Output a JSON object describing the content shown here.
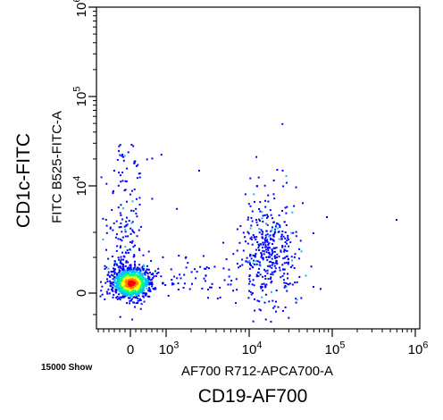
{
  "figure": {
    "outer_ylabel": "CD1c-FITC",
    "outer_xlabel": "CD19-AF700",
    "event_note": "15000 Show"
  },
  "chart_data": {
    "type": "scatter",
    "plot_style": "flow cytometry density dot plot (biexponential axes)",
    "xlabel": "AF700 R712-APCA700-A",
    "ylabel": "FITC B525-FITC-A",
    "x_scale": "biexponential",
    "y_scale": "biexponential",
    "xlim": [
      -2000,
      1000000
    ],
    "ylim": [
      -2000,
      1000000
    ],
    "x_ticks": [
      {
        "value": 0,
        "label": "0"
      },
      {
        "value": 1000,
        "label": "10^3"
      },
      {
        "value": 10000,
        "label": "10^4"
      },
      {
        "value": 100000,
        "label": "10^5"
      },
      {
        "value": 1000000,
        "label": "10^6"
      }
    ],
    "y_ticks": [
      {
        "value": 0,
        "label": "0"
      },
      {
        "value": 10000,
        "label": "10^4"
      },
      {
        "value": 100000,
        "label": "10^5"
      },
      {
        "value": 1000000,
        "label": "10^6"
      }
    ],
    "events_shown": 15000,
    "colormap": [
      "#0000ff",
      "#00bfff",
      "#00ff80",
      "#ffff00",
      "#ff8000",
      "#ff0000"
    ],
    "populations": [
      {
        "x_center": 0,
        "y_center": 0,
        "x_spread": 400,
        "y_spread": 300,
        "density": "very high"
      },
      {
        "x_center": 0,
        "y_center": 5000,
        "x_spread": 500,
        "y_spread": 9000,
        "density": "low"
      },
      {
        "x_center": 15000,
        "y_center": 1500,
        "x_spread": 9000,
        "y_spread": 4000,
        "density": "medium"
      },
      {
        "x_center": 2000,
        "y_center": 200,
        "x_spread": 1500,
        "y_spread": 600,
        "density": "very low"
      }
    ]
  }
}
